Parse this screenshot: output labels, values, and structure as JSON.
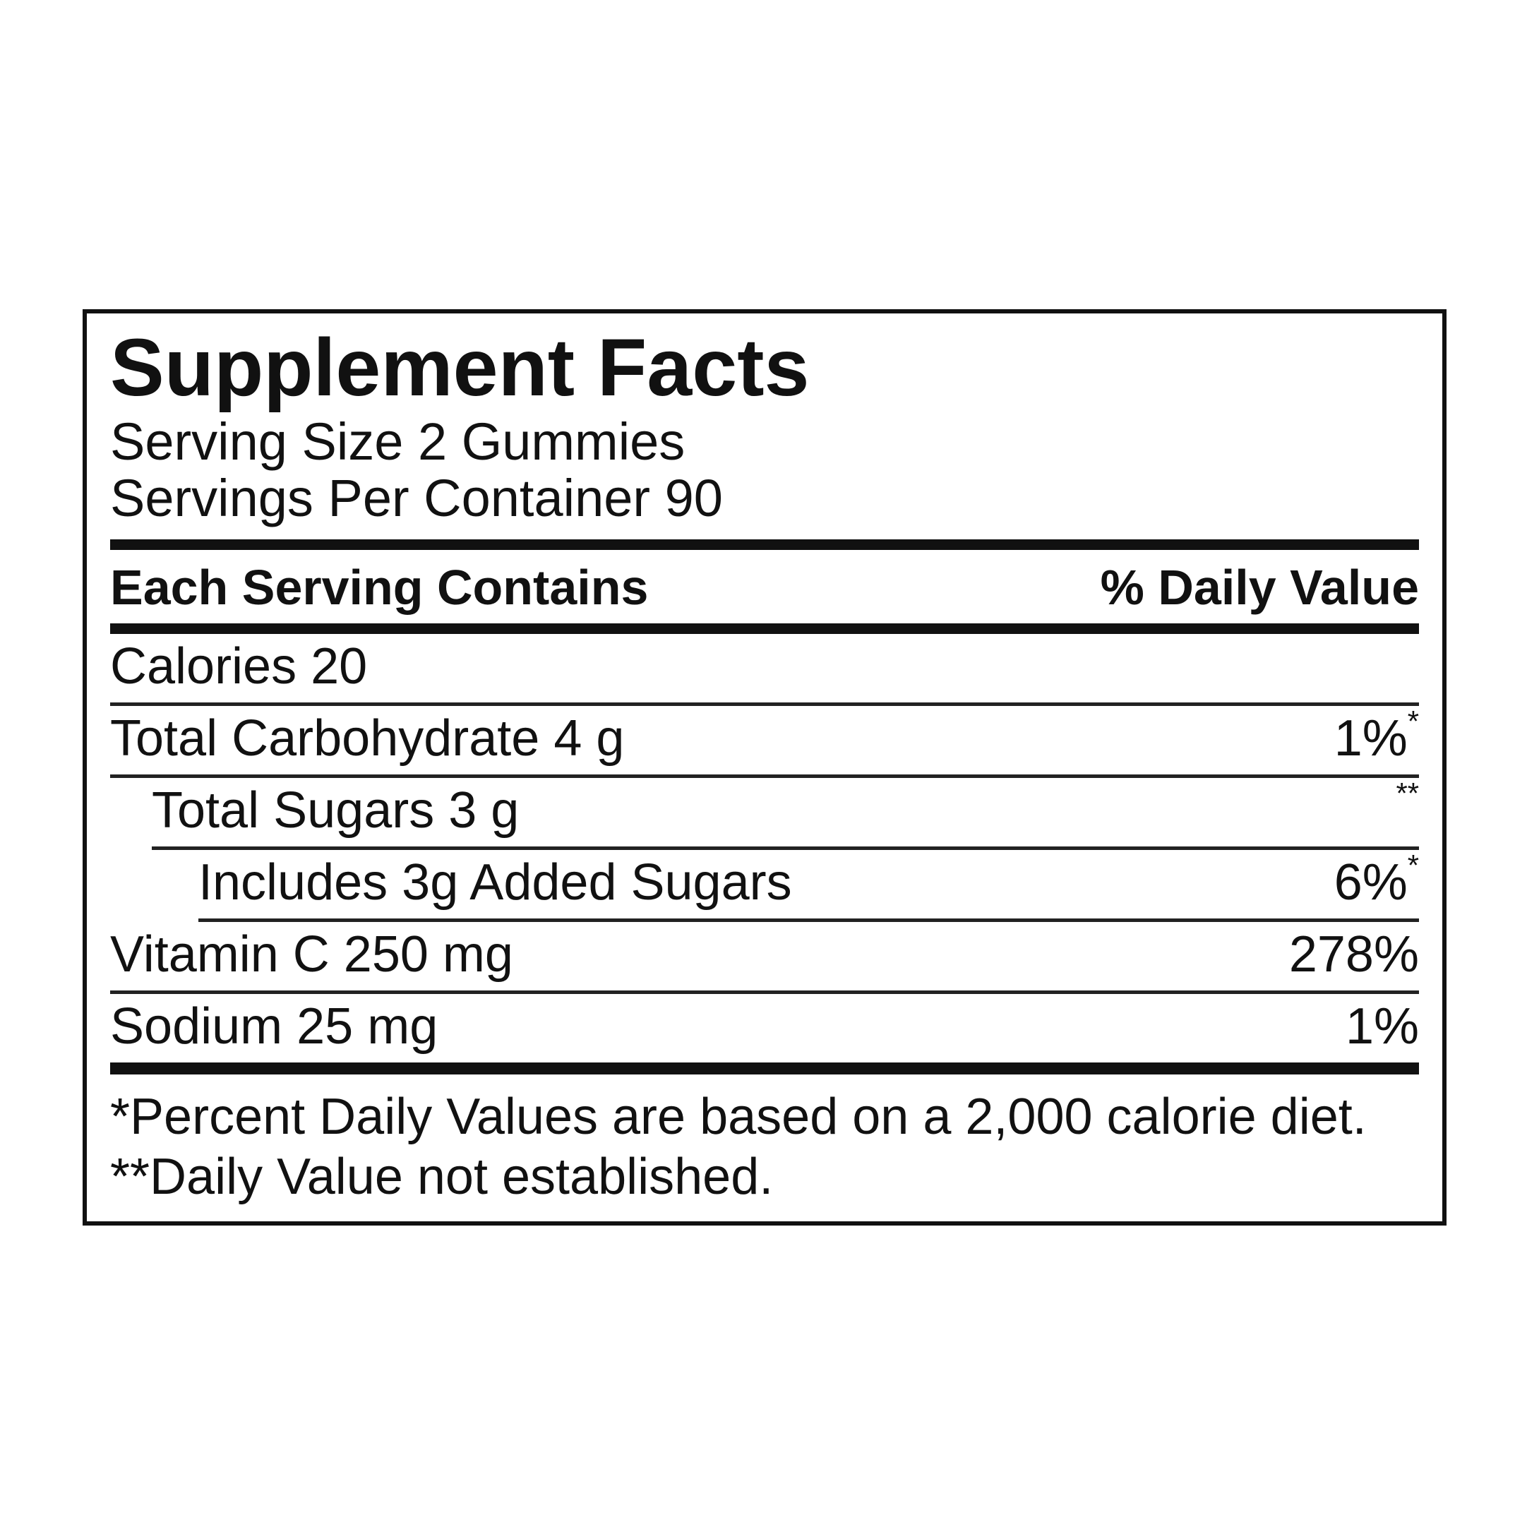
{
  "panel": {
    "title": "Supplement Facts",
    "serving_size": "Serving Size 2 Gummies",
    "servings_per_container": "Servings Per Container 90",
    "columns": {
      "left": "Each Serving Contains",
      "right": "% Daily Value"
    },
    "rows": [
      {
        "name": "Calories 20",
        "value": "",
        "sup": ""
      },
      {
        "name": "Total Carbohydrate 4 g",
        "value": "1%",
        "sup": "*"
      },
      {
        "name": "Total Sugars 3 g",
        "value": "",
        "sup": "**"
      },
      {
        "name": "Includes 3g Added Sugars",
        "value": "6%",
        "sup": "*"
      },
      {
        "name": "Vitamin C 250 mg",
        "value": "278%",
        "sup": ""
      },
      {
        "name": "Sodium 25 mg",
        "value": "1%",
        "sup": ""
      }
    ],
    "footnotes": [
      "*Percent Daily Values are based on a 2,000 calorie diet.",
      "**Daily Value not established."
    ]
  },
  "colors": {
    "text": "#111111",
    "background": "#ffffff",
    "rule": "#222222"
  }
}
